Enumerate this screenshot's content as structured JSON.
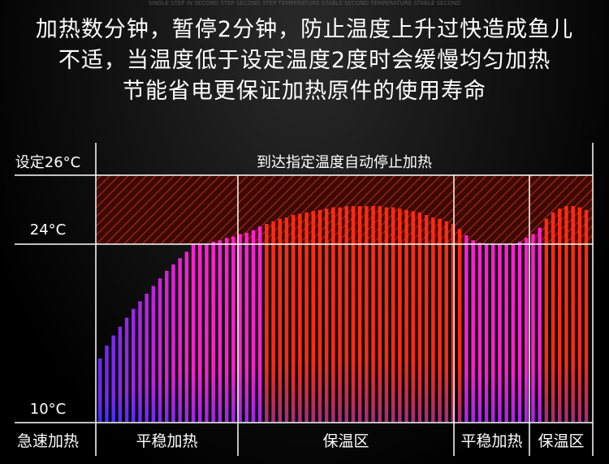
{
  "headline": {
    "ghost": "SINGLE STEP IN SECOND STEP SECOND STEP TEMPERATURE STABLE SECOND TEMPERATURE STABLE SECOND",
    "line1": "加热数分钟，暂停2分钟，防止温度上升过快造成鱼儿",
    "line2": "不适，当温度低于设定温度2度时会缓慢均匀加热",
    "line3": "节能省电更保证加热原件的使用寿命"
  },
  "chart_labels": {
    "set_temp": "设定26°C",
    "mid_temp": "24°C",
    "low_temp": "10°C",
    "banner": "到达指定温度自动停止加热"
  },
  "phases": [
    "急速加热",
    "平稳加热",
    "保温区",
    "平稳加热",
    "保温区"
  ],
  "colors": {
    "cool": "#3a2cff",
    "warm": "#ff1fd0",
    "hot": "#ff2a10",
    "hatch": "#8a1c10",
    "grid": "#ffffff"
  },
  "chart_data": {
    "type": "bar",
    "ylabels": [
      "设定26°C",
      "24°C",
      "10°C"
    ],
    "reference_levels": [
      26,
      24,
      10
    ],
    "phases": [
      "急速加热",
      "平稳加热",
      "保温区",
      "平稳加热",
      "保温区"
    ],
    "values": [
      15.0,
      16.0,
      16.8,
      17.5,
      18.2,
      18.9,
      19.5,
      20.1,
      20.7,
      21.3,
      21.9,
      22.4,
      22.9,
      23.4,
      24.0,
      24.0,
      24.0,
      24.2,
      24.3,
      24.5,
      24.6,
      24.8,
      24.9,
      25.1,
      25.4,
      25.6,
      25.8,
      26.0,
      26.1,
      26.3,
      26.4,
      26.5,
      26.6,
      26.7,
      26.8,
      26.9,
      26.9,
      27.0,
      27.0,
      27.0,
      27.0,
      27.0,
      27.0,
      26.9,
      26.9,
      26.8,
      26.7,
      26.6,
      26.5,
      26.3,
      26.1,
      26.0,
      25.8,
      25.6,
      25.2,
      24.7,
      24.3,
      24.1,
      24.0,
      24.0,
      24.0,
      24.0,
      24.0,
      24.2,
      24.5,
      24.8,
      25.3,
      26.0,
      26.5,
      26.8,
      27.0,
      27.0,
      26.9,
      26.7
    ]
  }
}
